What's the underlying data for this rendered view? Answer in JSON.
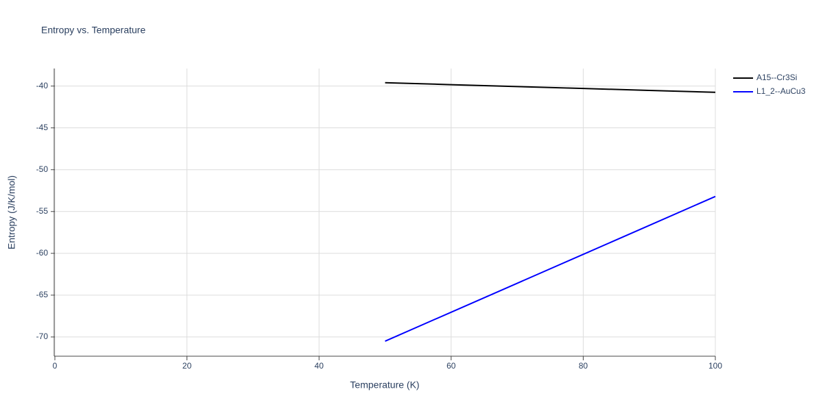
{
  "chart_data": {
    "type": "line",
    "title": "Entropy vs. Temperature",
    "x_label": "Temperature (K)",
    "y_label": "Entropy (J/K/mol)",
    "x": [
      50,
      60,
      70,
      80,
      90,
      100
    ],
    "series": [
      {
        "name": "A15--Cr3Si",
        "color": "#000000",
        "values": [
          -39.6,
          -39.83,
          -40.06,
          -40.29,
          -40.52,
          -40.75
        ]
      },
      {
        "name": "L1_2--AuCu3",
        "color": "#0000ff",
        "values": [
          -70.5,
          -67.04,
          -63.58,
          -60.12,
          -56.66,
          -53.2
        ]
      }
    ],
    "xlim": [
      0,
      100
    ],
    "xticks": [
      0,
      20,
      40,
      60,
      80,
      100
    ],
    "ylim": [
      -72.3,
      -37.9
    ],
    "yticks": [
      -70,
      -65,
      -60,
      -55,
      -50,
      -45,
      -40
    ],
    "grid": true,
    "legend": "top-right"
  }
}
